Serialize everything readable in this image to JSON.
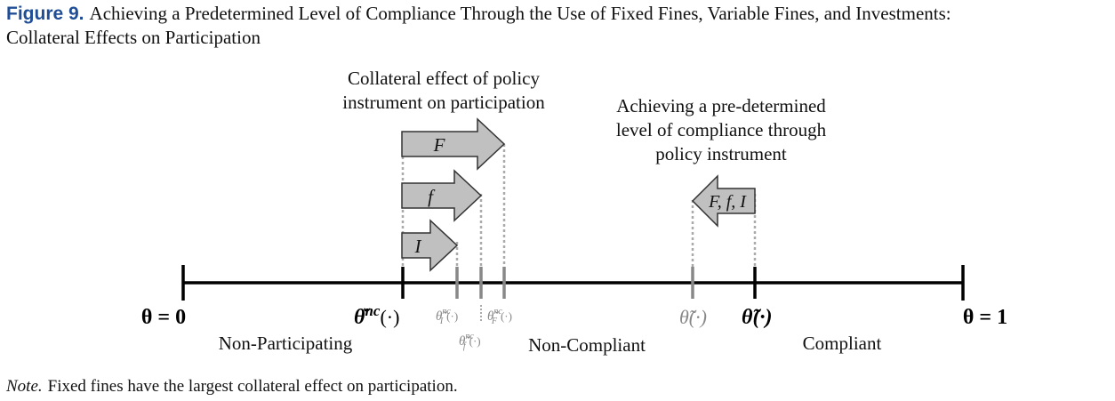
{
  "figure": {
    "label": "Figure 9.",
    "title_line1": "Achieving a Predetermined Level of Compliance Through the Use of Fixed Fines, Variable Fines, and Investments:",
    "title_line2": "Collateral Effects on Participation"
  },
  "annotations": {
    "collateral_line1": "Collateral effect of policy",
    "collateral_line2": "instrument on participation",
    "achieving_line1": "Achieving a pre-determined",
    "achieving_line2": "level of compliance through",
    "achieving_line3": "policy instrument"
  },
  "arrows": {
    "fixed_fine": "F",
    "variable_fine": "f",
    "investment": "I",
    "combined": "F, f, I"
  },
  "axis": {
    "left_label": "θ = 0",
    "right_label": "θ = 1",
    "theta_nc_symbol": "θ̆",
    "theta_nc_sup": "nc",
    "theta_nc_arg": "(·)",
    "theta_I_symbol": "θ̆",
    "theta_I_sub": "I",
    "theta_I_sup": "nc",
    "theta_I_arg": "(·)",
    "theta_f_symbol": "θ̆",
    "theta_f_sub": "f",
    "theta_f_sup": "nc",
    "theta_f_arg": "(·)",
    "theta_F_symbol": "θ̆",
    "theta_F_sub": "F",
    "theta_F_sup": "nc",
    "theta_F_arg": "(·)",
    "theta_tilde_gray": "θ̃(·)",
    "theta_tilde_black": "θ̃(·)"
  },
  "regions": {
    "non_participating": "Non-Participating",
    "non_compliant": "Non-Compliant",
    "compliant": "Compliant"
  },
  "note": {
    "label": "Note.",
    "text": "Fixed fines have the largest collateral effect on participation."
  }
}
